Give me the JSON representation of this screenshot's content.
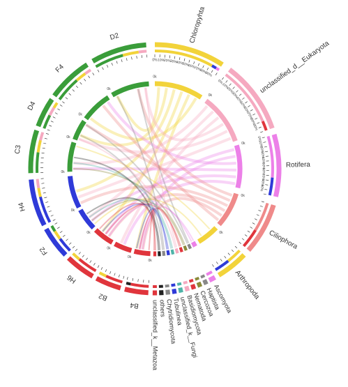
{
  "chart_data": {
    "type": "chord",
    "title": "",
    "colors": {
      "yellow": "#f2d33a",
      "red": "#e0353c",
      "pink": "#f5a9c0",
      "violet": "#ec80e8",
      "blue": "#2f3ad8",
      "green": "#3a9d3a",
      "salmon": "#ef8a8a",
      "olive": "#8a8a3a",
      "teal": "#4fb3a8",
      "gray": "#888888",
      "black": "#222222"
    },
    "taxa": [
      {
        "name": "Chloropyhta",
        "color": "yellow"
      },
      {
        "name": "unclassified_d__Eukaryota",
        "color": "pink"
      },
      {
        "name": "Rotifera",
        "color": "violet"
      },
      {
        "name": "Ciliophora",
        "color": "salmon"
      },
      {
        "name": "Arthropoda",
        "color": "yellow"
      },
      {
        "name": "Ascomyota",
        "color": "violet"
      },
      {
        "name": "Haptista",
        "color": "gray"
      },
      {
        "name": "Cercozoa",
        "color": "olive"
      },
      {
        "name": "Nematoda",
        "color": "red"
      },
      {
        "name": "Basidiomycota",
        "color": "pink"
      },
      {
        "name": "unclassified_k__Fungi",
        "color": "teal"
      },
      {
        "name": "Tubulinea",
        "color": "blue"
      },
      {
        "name": "Chytridiomycota",
        "color": "gray"
      },
      {
        "name": "others",
        "color": "black"
      },
      {
        "name": "unclassified_k__Metazoa",
        "color": "red"
      }
    ],
    "samples": [
      {
        "name": "D2",
        "color": "green"
      },
      {
        "name": "F4",
        "color": "green"
      },
      {
        "name": "D4",
        "color": "green"
      },
      {
        "name": "C3",
        "color": "green"
      },
      {
        "name": "H4",
        "color": "blue"
      },
      {
        "name": "F2",
        "color": "blue"
      },
      {
        "name": "H6",
        "color": "red"
      },
      {
        "name": "B2",
        "color": "red"
      },
      {
        "name": "B4",
        "color": "red"
      }
    ],
    "percent_ticks": [
      "0%",
      "10%",
      "20%",
      "30%",
      "40%",
      "50%",
      "60%",
      "70%",
      "80%",
      "90%"
    ],
    "inner_tick_label": "0k"
  }
}
